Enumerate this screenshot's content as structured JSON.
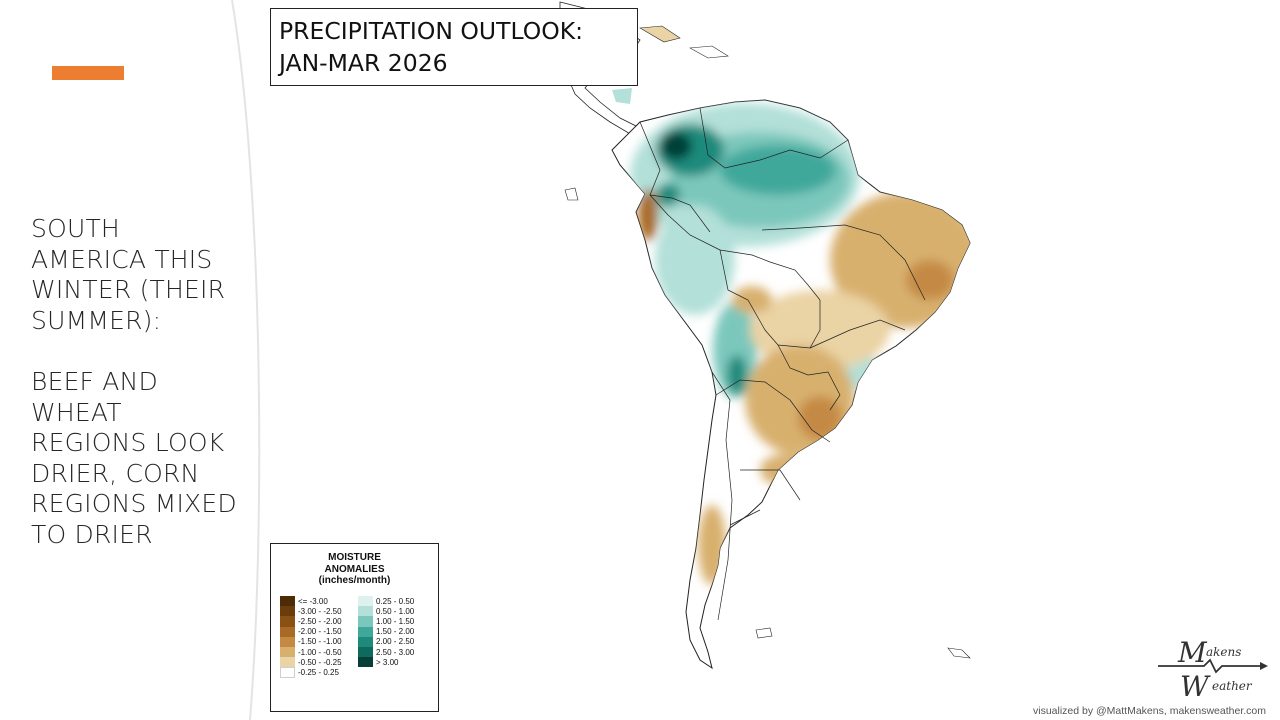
{
  "slide": {
    "heading_lines": [
      "SOUTH",
      "AMERICA THIS",
      "WINTER (THEIR",
      "SUMMER):"
    ],
    "body_lines": [
      "BEEF AND",
      "WHEAT",
      "REGIONS LOOK",
      "DRIER, CORN",
      "REGIONS MIXED",
      "TO DRIER"
    ],
    "accent_color": "#ed7d31"
  },
  "map_title": {
    "line1": "PRECIPITATION OUTLOOK:",
    "line2": "JAN-MAR 2026"
  },
  "legend": {
    "title_line1": "MOISTURE",
    "title_line2": "ANOMALIES",
    "title_line3": "(inches/month)",
    "dry_bins": [
      {
        "label": "<= -3.00",
        "color": "#4d2b06"
      },
      {
        "label": "-3.00 - -2.50",
        "color": "#6b3d0c"
      },
      {
        "label": "-2.50 - -2.00",
        "color": "#8a5115"
      },
      {
        "label": "-2.00 - -1.50",
        "color": "#a86a25"
      },
      {
        "label": "-1.50 - -1.00",
        "color": "#c48a44"
      },
      {
        "label": "-1.00 - -0.50",
        "color": "#d8b06e"
      },
      {
        "label": "-0.50 - -0.25",
        "color": "#ead3a4"
      },
      {
        "label": "-0.25 - 0.25",
        "color": "#ffffff"
      }
    ],
    "wet_bins": [
      {
        "label": "0.25 - 0.50",
        "color": "#dff1ee"
      },
      {
        "label": "0.50 - 1.00",
        "color": "#b3e0d9"
      },
      {
        "label": "1.00 - 1.50",
        "color": "#7cc7bc"
      },
      {
        "label": "1.50 - 2.00",
        "color": "#3fa89b"
      },
      {
        "label": "2.00 - 2.50",
        "color": "#1e8a7c"
      },
      {
        "label": "2.50 - 3.00",
        "color": "#0f6a5e"
      },
      {
        "label": "> 3.00",
        "color": "#063f37"
      }
    ]
  },
  "logo": {
    "line1": "akens",
    "line2": "eather",
    "letter1": "M",
    "letter2": "W"
  },
  "credit": "visualized by @MattMakens, makensweather.com"
}
